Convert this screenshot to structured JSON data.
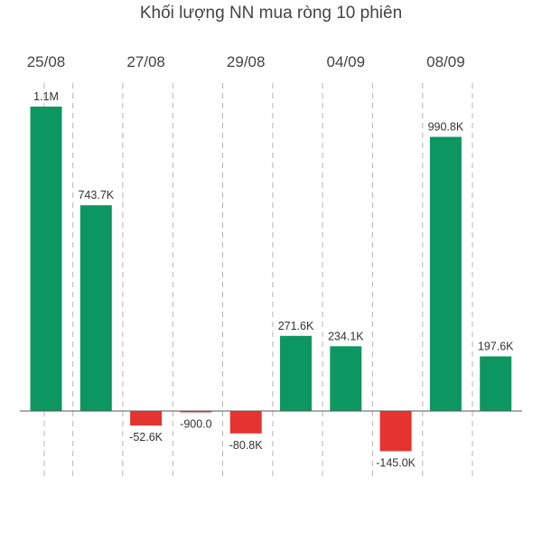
{
  "chart_data": {
    "type": "bar",
    "title": "Khối lượng NN mua ròng 10 phiên",
    "date_labels": [
      "25/08",
      "27/08",
      "29/08",
      "04/09",
      "08/09"
    ],
    "values": [
      1100000,
      743700,
      -52600,
      -900,
      -80800,
      271600,
      234100,
      -145000,
      990800,
      197600
    ],
    "value_labels": [
      "1.1M",
      "743.7K",
      "-52.6K",
      "-900.0",
      "-80.8K",
      "271.6K",
      "234.1K",
      "-145.0K",
      "990.8K",
      "197.6K"
    ],
    "grid": "vertical dashed",
    "colors": {
      "positive": "#0e9660",
      "negative": "#e53330",
      "text": "#444444",
      "grid": "#b5b5b5"
    }
  }
}
